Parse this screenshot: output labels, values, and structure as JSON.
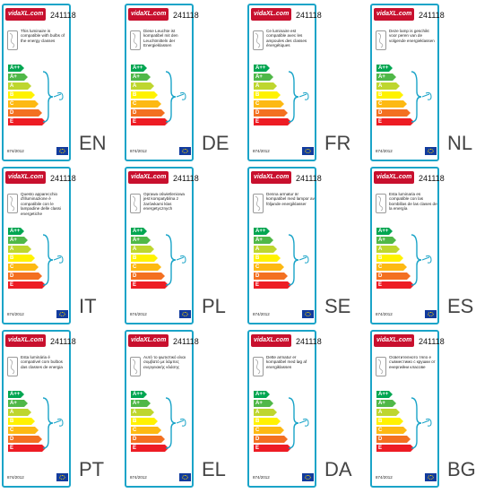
{
  "product_id": "241118",
  "logo_text": "vidaXL.com",
  "regulation": "874/2012",
  "energy_classes": [
    {
      "label": "A++",
      "color": "#00a651"
    },
    {
      "label": "A+",
      "color": "#50b848"
    },
    {
      "label": "A",
      "color": "#bed62f"
    },
    {
      "label": "B",
      "color": "#fff200"
    },
    {
      "label": "C",
      "color": "#fdb913"
    },
    {
      "label": "D",
      "color": "#f37021"
    },
    {
      "label": "E",
      "color": "#ed1c24"
    }
  ],
  "colors": {
    "frame": "#1aa4c8",
    "logo": "#c8102e",
    "eu_flag": "#123b9e"
  },
  "labels": [
    {
      "lang": "EN",
      "text": "This luminaire is compatible with bulbs of the energy classes"
    },
    {
      "lang": "DE",
      "text": "Diese Leuchte ist kompatibel mit den Leuchtmitteln der Energieklassen"
    },
    {
      "lang": "FR",
      "text": "Ce luminaire est compatible avec les ampoules des classes énergétiques"
    },
    {
      "lang": "NL",
      "text": "Deze lamp is geschikt voor peren van de volgende energieklassen"
    },
    {
      "lang": "IT",
      "text": "Questo apparecchio d'illuminazione è compatibile con le lampadine delle classi energetiche"
    },
    {
      "lang": "PL",
      "text": "Oprawa oświetleniowa jest kompatybilna z żarówkami klas energetycznych"
    },
    {
      "lang": "SE",
      "text": "Denna armatur är kompatibel med lampor av följande energiklasser"
    },
    {
      "lang": "ES",
      "text": "Esta luminaria es compatible con las bombillas de las clases de la energía"
    },
    {
      "lang": "PT",
      "text": "Esta luminária é compatível com bulbos das classes de energia"
    },
    {
      "lang": "EL",
      "text": "Αυτό το φωτιστικό είναι συμβατό με λάμπες ενεργειακής κλάσης"
    },
    {
      "lang": "DA",
      "text": "Dette armatur er kompatibel med løg af energiklassen"
    },
    {
      "lang": "BG",
      "text": "Осветителното тяло е съвместимо с крушки от енергийни класове"
    }
  ]
}
